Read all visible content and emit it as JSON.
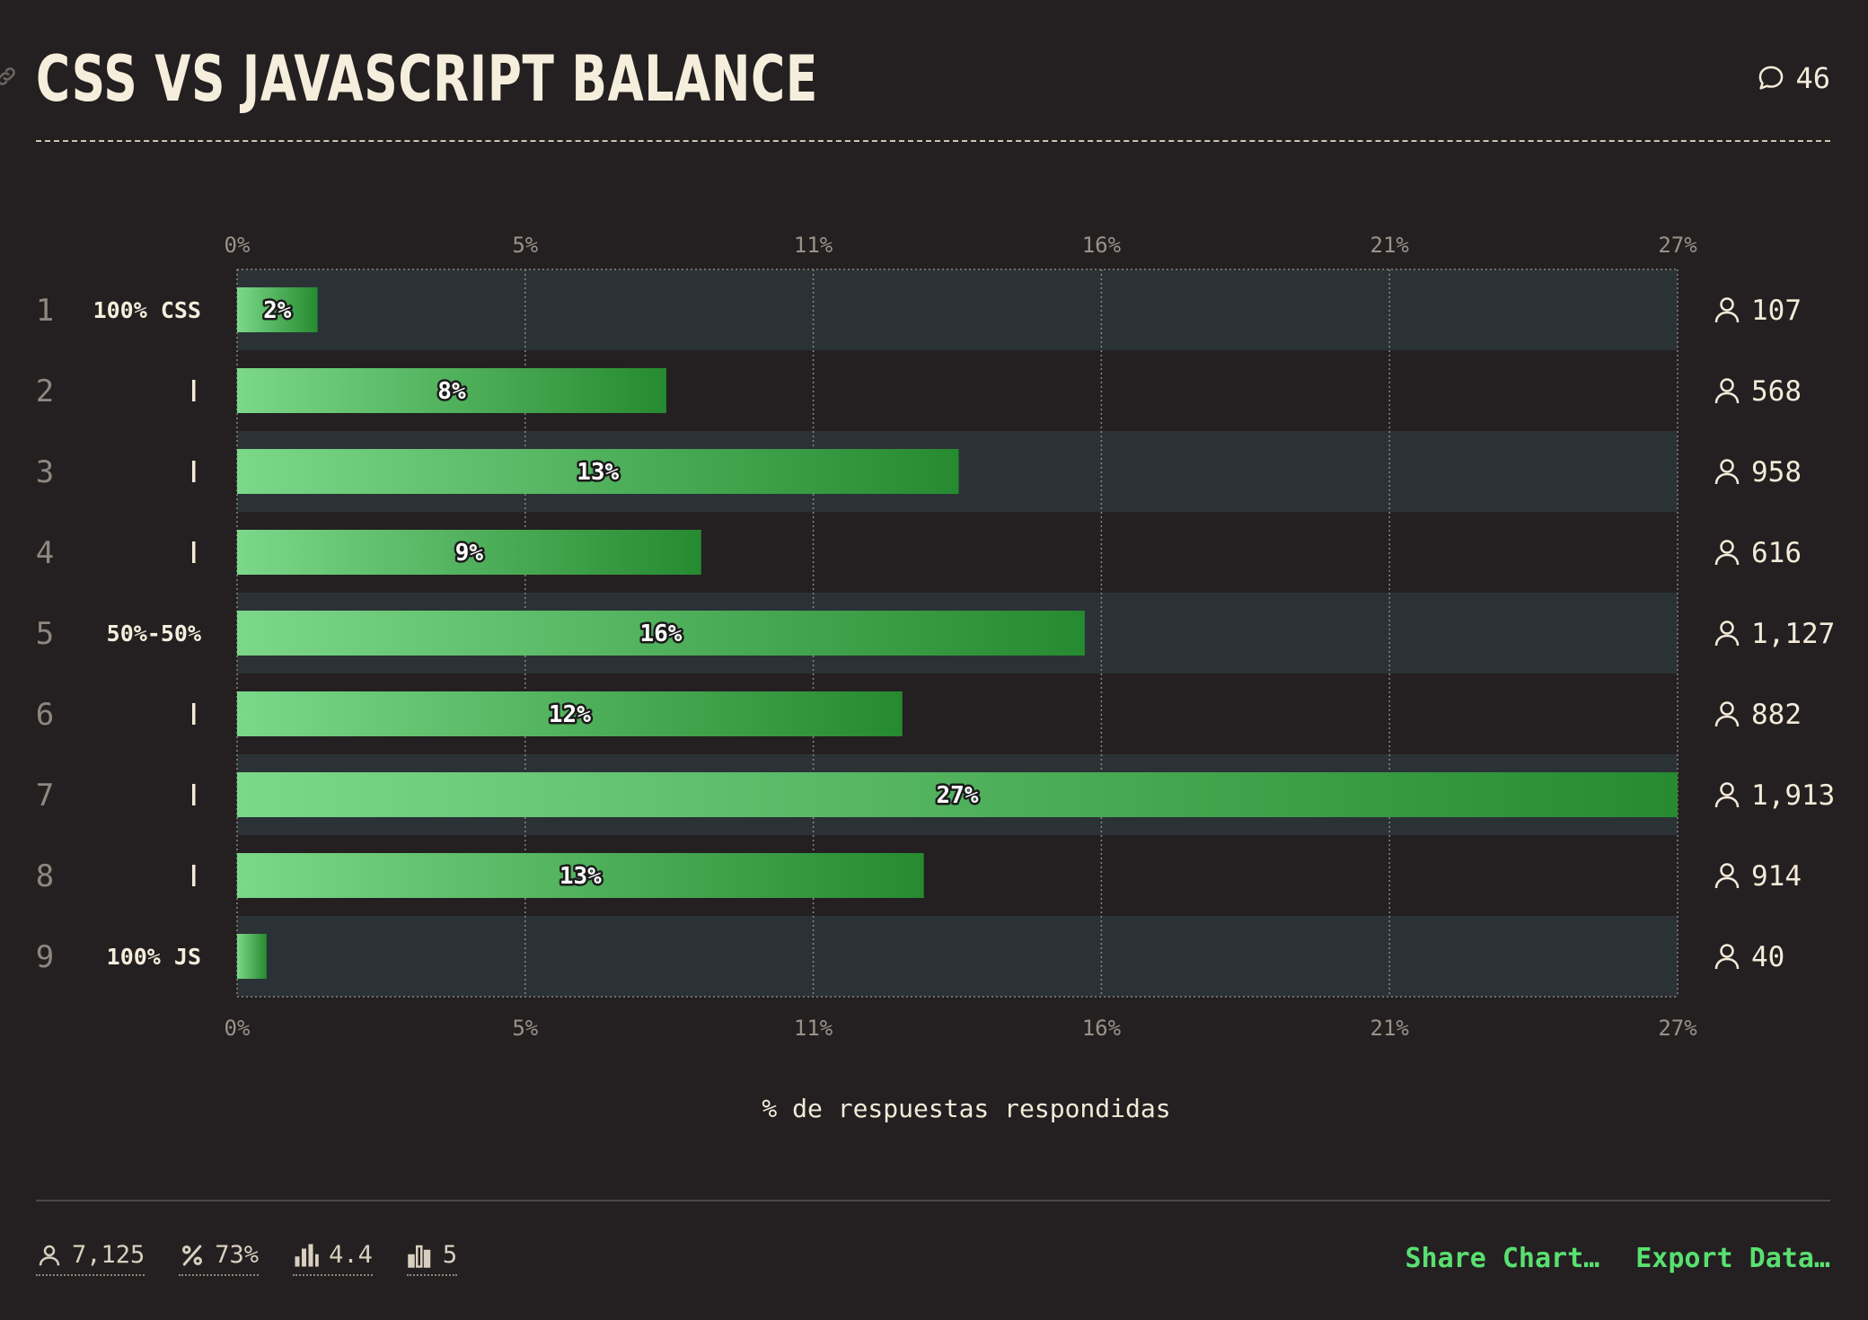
{
  "header": {
    "title": "CSS VS JAVASCRIPT BALANCE",
    "comment_count": "46"
  },
  "chart_data": {
    "type": "bar",
    "orientation": "horizontal",
    "title": "CSS VS JAVASCRIPT BALANCE",
    "xlabel": "% de respuestas respondidas",
    "ylabel": "",
    "xlim": [
      0,
      26.85
    ],
    "x_ticks": [
      "0%",
      "5%",
      "11%",
      "16%",
      "21%",
      "27%"
    ],
    "x_tick_values": [
      0,
      5.37,
      10.74,
      16.11,
      21.48,
      26.85
    ],
    "grid": true,
    "categories": [
      "1",
      "2",
      "3",
      "4",
      "5",
      "6",
      "7",
      "8",
      "9"
    ],
    "row_labels": [
      "100% CSS",
      "|",
      "|",
      "|",
      "50%-50%",
      "|",
      "|",
      "|",
      "100% JS"
    ],
    "values": [
      1.5,
      8.0,
      13.45,
      8.65,
      15.8,
      12.4,
      26.85,
      12.8,
      0.55
    ],
    "value_labels": [
      "2%",
      "8%",
      "13%",
      "9%",
      "16%",
      "12%",
      "27%",
      "13%",
      ""
    ],
    "counts": [
      "107",
      "568",
      "958",
      "616",
      "1,127",
      "882",
      "1,913",
      "914",
      "40"
    ],
    "colors": {
      "bar_start": "#7bd889",
      "bar_end": "#268a30",
      "stripe": "#2b3236",
      "grid": "#8a8580"
    }
  },
  "footer": {
    "stats": [
      {
        "icon": "user-icon",
        "value": "7,125"
      },
      {
        "icon": "percent-icon",
        "value": "73%"
      },
      {
        "icon": "bar-chart-icon",
        "value": "4.4"
      },
      {
        "icon": "bar-chart-outline-icon",
        "value": "5"
      }
    ],
    "share_label": "Share Chart…",
    "export_label": "Export Data…"
  },
  "colors": {
    "background": "#242021",
    "text": "#f3ead8",
    "accent": "#59e070"
  }
}
